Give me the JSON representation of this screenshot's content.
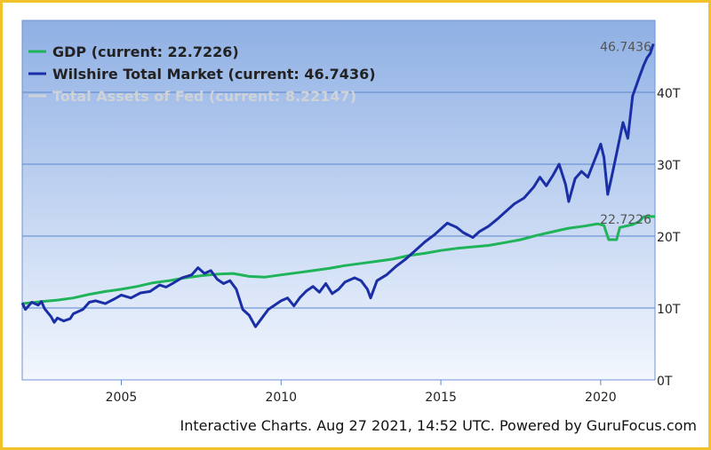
{
  "footer_text": "Interactive Charts. Aug 27 2021, 14:52 UTC. Powered by GuruFocus.com",
  "chart_data": {
    "type": "line",
    "title": "",
    "xlabel": "",
    "ylabel": "",
    "x_ticks": [
      "2005",
      "2010",
      "2015",
      "2020"
    ],
    "y_ticks": [
      "0T",
      "10T",
      "20T",
      "30T",
      "40T"
    ],
    "xlim": [
      2001.9,
      2021.7
    ],
    "ylim": [
      0,
      50
    ],
    "grid": true,
    "legend_position": "top-left",
    "background_gradient": [
      "#8fb0e4",
      "#f3f7fe"
    ],
    "series": [
      {
        "name": "GDP (current: 22.7226)",
        "color": "#1fb45a",
        "end_label": "22.7226",
        "points": [
          [
            2001.9,
            10.6
          ],
          [
            2002.5,
            10.9
          ],
          [
            2003.0,
            11.1
          ],
          [
            2003.5,
            11.4
          ],
          [
            2004.0,
            11.9
          ],
          [
            2004.5,
            12.3
          ],
          [
            2005.0,
            12.6
          ],
          [
            2005.5,
            13.0
          ],
          [
            2006.0,
            13.5
          ],
          [
            2006.5,
            13.8
          ],
          [
            2007.0,
            14.2
          ],
          [
            2007.5,
            14.5
          ],
          [
            2008.0,
            14.7
          ],
          [
            2008.5,
            14.8
          ],
          [
            2009.0,
            14.4
          ],
          [
            2009.5,
            14.3
          ],
          [
            2010.0,
            14.6
          ],
          [
            2010.5,
            14.9
          ],
          [
            2011.0,
            15.2
          ],
          [
            2011.5,
            15.5
          ],
          [
            2012.0,
            15.9
          ],
          [
            2012.5,
            16.2
          ],
          [
            2013.0,
            16.5
          ],
          [
            2013.5,
            16.8
          ],
          [
            2014.0,
            17.3
          ],
          [
            2014.5,
            17.6
          ],
          [
            2015.0,
            18.0
          ],
          [
            2015.5,
            18.3
          ],
          [
            2016.0,
            18.5
          ],
          [
            2016.5,
            18.7
          ],
          [
            2017.0,
            19.1
          ],
          [
            2017.5,
            19.5
          ],
          [
            2018.0,
            20.1
          ],
          [
            2018.5,
            20.6
          ],
          [
            2019.0,
            21.1
          ],
          [
            2019.5,
            21.4
          ],
          [
            2019.9,
            21.7
          ],
          [
            2020.1,
            21.5
          ],
          [
            2020.25,
            19.5
          ],
          [
            2020.5,
            19.5
          ],
          [
            2020.6,
            21.2
          ],
          [
            2020.9,
            21.5
          ],
          [
            2021.0,
            21.6
          ],
          [
            2021.2,
            22.0
          ],
          [
            2021.35,
            22.7
          ],
          [
            2021.7,
            22.7226
          ]
        ]
      },
      {
        "name": "Wilshire Total Market (current: 46.7436)",
        "color": "#1a2fa6",
        "end_label": "46.7436",
        "points": [
          [
            2001.9,
            10.7
          ],
          [
            2002.0,
            9.8
          ],
          [
            2002.2,
            10.8
          ],
          [
            2002.4,
            10.4
          ],
          [
            2002.5,
            10.9
          ],
          [
            2002.6,
            9.9
          ],
          [
            2002.8,
            8.8
          ],
          [
            2002.9,
            8.0
          ],
          [
            2003.0,
            8.6
          ],
          [
            2003.2,
            8.2
          ],
          [
            2003.4,
            8.5
          ],
          [
            2003.5,
            9.2
          ],
          [
            2003.8,
            9.8
          ],
          [
            2004.0,
            10.8
          ],
          [
            2004.2,
            11.0
          ],
          [
            2004.5,
            10.6
          ],
          [
            2004.8,
            11.3
          ],
          [
            2005.0,
            11.8
          ],
          [
            2005.3,
            11.4
          ],
          [
            2005.6,
            12.1
          ],
          [
            2005.9,
            12.3
          ],
          [
            2006.2,
            13.2
          ],
          [
            2006.4,
            12.9
          ],
          [
            2006.6,
            13.4
          ],
          [
            2006.9,
            14.2
          ],
          [
            2007.2,
            14.6
          ],
          [
            2007.4,
            15.6
          ],
          [
            2007.6,
            14.8
          ],
          [
            2007.8,
            15.2
          ],
          [
            2008.0,
            14.0
          ],
          [
            2008.2,
            13.4
          ],
          [
            2008.4,
            13.8
          ],
          [
            2008.6,
            12.6
          ],
          [
            2008.8,
            9.8
          ],
          [
            2009.0,
            9.0
          ],
          [
            2009.2,
            7.4
          ],
          [
            2009.4,
            8.6
          ],
          [
            2009.6,
            9.8
          ],
          [
            2009.8,
            10.4
          ],
          [
            2010.0,
            11.0
          ],
          [
            2010.2,
            11.4
          ],
          [
            2010.4,
            10.3
          ],
          [
            2010.6,
            11.5
          ],
          [
            2010.8,
            12.4
          ],
          [
            2011.0,
            13.0
          ],
          [
            2011.2,
            12.2
          ],
          [
            2011.4,
            13.4
          ],
          [
            2011.6,
            12.0
          ],
          [
            2011.8,
            12.6
          ],
          [
            2012.0,
            13.6
          ],
          [
            2012.3,
            14.2
          ],
          [
            2012.5,
            13.8
          ],
          [
            2012.7,
            12.6
          ],
          [
            2012.8,
            11.4
          ],
          [
            2013.0,
            13.8
          ],
          [
            2013.3,
            14.6
          ],
          [
            2013.6,
            15.8
          ],
          [
            2013.9,
            16.8
          ],
          [
            2014.2,
            18.0
          ],
          [
            2014.5,
            19.2
          ],
          [
            2014.8,
            20.2
          ],
          [
            2015.0,
            21.0
          ],
          [
            2015.2,
            21.8
          ],
          [
            2015.5,
            21.2
          ],
          [
            2015.7,
            20.5
          ],
          [
            2016.0,
            19.8
          ],
          [
            2016.2,
            20.6
          ],
          [
            2016.5,
            21.4
          ],
          [
            2016.8,
            22.5
          ],
          [
            2017.0,
            23.3
          ],
          [
            2017.3,
            24.5
          ],
          [
            2017.6,
            25.3
          ],
          [
            2017.9,
            26.8
          ],
          [
            2018.1,
            28.2
          ],
          [
            2018.3,
            27.0
          ],
          [
            2018.5,
            28.4
          ],
          [
            2018.7,
            30.0
          ],
          [
            2018.9,
            27.2
          ],
          [
            2019.0,
            24.8
          ],
          [
            2019.2,
            28.0
          ],
          [
            2019.4,
            29.0
          ],
          [
            2019.6,
            28.2
          ],
          [
            2019.9,
            31.6
          ],
          [
            2020.0,
            32.8
          ],
          [
            2020.1,
            31.0
          ],
          [
            2020.22,
            25.8
          ],
          [
            2020.35,
            28.4
          ],
          [
            2020.5,
            31.5
          ],
          [
            2020.7,
            35.8
          ],
          [
            2020.85,
            33.6
          ],
          [
            2021.0,
            39.5
          ],
          [
            2021.2,
            42.0
          ],
          [
            2021.35,
            43.8
          ],
          [
            2021.45,
            44.8
          ],
          [
            2021.55,
            45.4
          ],
          [
            2021.65,
            46.7436
          ]
        ]
      },
      {
        "name": "Total Assets of Fed (current: 8.22147)",
        "color": "#c8ccd2",
        "hidden": true,
        "end_label": "8.22147",
        "points": []
      }
    ]
  }
}
